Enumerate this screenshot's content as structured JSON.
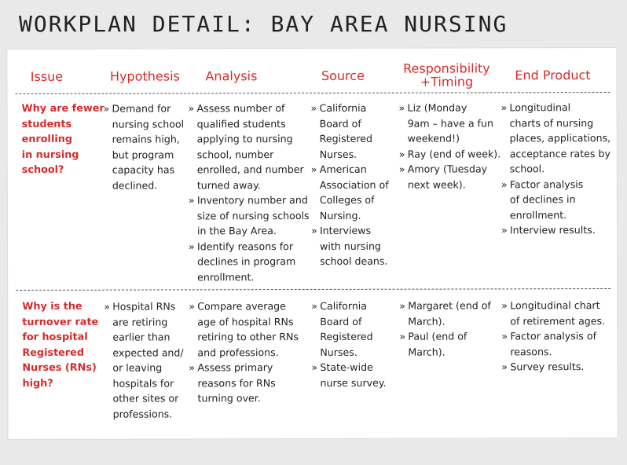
{
  "title": "WORKPLAN DETAIL: BAY AREA NURSING",
  "headers": {
    "issue": "Issue",
    "hypothesis": "Hypothesis",
    "analysis": "Analysis",
    "source": "Source",
    "responsibility_line1": "Responsibility",
    "responsibility_line2": "+Timing",
    "end_product": "End Product"
  },
  "rows": [
    {
      "issue": [
        "Why are fewer",
        "students",
        "enrolling",
        "in nursing",
        "school?"
      ],
      "hypothesis": [
        [
          "Demand for",
          "nursing school",
          "remains high,",
          "but program",
          "capacity has",
          "declined."
        ]
      ],
      "analysis": [
        [
          "Assess number of",
          "qualified students",
          "applying to nursing",
          "school, number",
          "enrolled, and number",
          "turned away."
        ],
        [
          "Inventory number and",
          "size of nursing schools",
          "in the Bay Area."
        ],
        [
          "Identify reasons for",
          "declines in program",
          "enrollment."
        ]
      ],
      "source": [
        [
          "California",
          "Board of",
          "Registered",
          "Nurses."
        ],
        [
          "American",
          "Association of",
          "Colleges of",
          "Nursing."
        ],
        [
          "Interviews",
          "with nursing",
          "school deans."
        ]
      ],
      "responsibility": [
        [
          "Liz (Monday",
          "9am – have a fun",
          "weekend!)"
        ],
        [
          "Ray (end of week)."
        ],
        [
          "Amory (Tuesday",
          "next week)."
        ]
      ],
      "end_product": [
        [
          "Longitudinal",
          "charts of nursing",
          "places, applications,",
          "acceptance rates by",
          "school."
        ],
        [
          "Factor analysis",
          "of declines in",
          "enrollment."
        ],
        [
          "Interview results."
        ]
      ]
    },
    {
      "issue": [
        "Why is the",
        "turnover rate",
        "for hospital",
        "Registered",
        "Nurses (RNs)",
        "high?"
      ],
      "hypothesis": [
        [
          "Hospital RNs",
          "are retiring",
          "earlier than",
          "expected and/",
          "or leaving",
          "hospitals for",
          "other sites or",
          "professions."
        ]
      ],
      "analysis": [
        [
          "Compare average",
          "age of hospital RNs",
          "retiring to other RNs",
          "and professions."
        ],
        [
          "Assess primary",
          "reasons for RNs",
          "turning over."
        ]
      ],
      "source": [
        [
          "California",
          "Board of",
          "Registered",
          "Nurses."
        ],
        [
          "State-wide",
          "nurse survey."
        ]
      ],
      "responsibility": [
        [
          "Margaret (end of",
          "March)."
        ],
        [
          "Paul (end of",
          "March)."
        ]
      ],
      "end_product": [
        [
          "Longitudinal chart",
          "of retirement ages."
        ],
        [
          "Factor analysis of",
          "reasons."
        ],
        [
          "Survey results."
        ]
      ]
    }
  ]
}
